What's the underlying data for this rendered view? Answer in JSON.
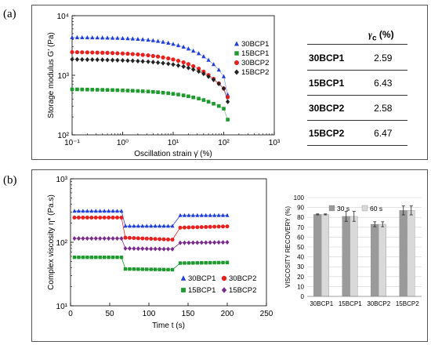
{
  "panel_a_label": "(a)",
  "panel_b_label": "(b)",
  "table": {
    "header_symbol": "γ",
    "header_sub": "c",
    "header_unit": " (%)",
    "rows": [
      {
        "name": "30BCP1",
        "value": "2.59"
      },
      {
        "name": "15BCP1",
        "value": "6.43"
      },
      {
        "name": "30BCP2",
        "value": "2.58"
      },
      {
        "name": "15BCP2",
        "value": "6.47"
      }
    ]
  },
  "chart_data": [
    {
      "type": "scatter",
      "id": "storage-modulus",
      "xscale": "log",
      "yscale": "log",
      "xlim": [
        0.1,
        1000
      ],
      "ylim": [
        100,
        10000
      ],
      "xlabel": "Oscillation strain γ̇  (%)",
      "ylabel": "Storage modulus G′ (Pa)",
      "xticks": [
        "10⁻¹",
        "10⁰",
        "10¹",
        "10²",
        "10³"
      ],
      "yticks": [
        "10²",
        "10³",
        "10⁴"
      ],
      "x": [
        0.1,
        0.126,
        0.158,
        0.2,
        0.251,
        0.316,
        0.398,
        0.5,
        0.63,
        0.79,
        1,
        1.26,
        1.58,
        2,
        2.5,
        3.2,
        4,
        5,
        6.3,
        8,
        10,
        12.6,
        16,
        20,
        25,
        32,
        40,
        50,
        63,
        80,
        100,
        120
      ],
      "series": [
        {
          "name": "30BCP1",
          "color": "#1f3fd8",
          "marker": "triangle",
          "values": [
            4300,
            4300,
            4290,
            4280,
            4270,
            4260,
            4250,
            4230,
            4210,
            4190,
            4160,
            4130,
            4090,
            4040,
            3980,
            3910,
            3830,
            3730,
            3610,
            3480,
            3330,
            3160,
            2980,
            2780,
            2560,
            2320,
            2060,
            1800,
            1520,
            1230,
            950,
            470
          ]
        },
        {
          "name": "15BCP1",
          "color": "#1e9a2e",
          "marker": "square",
          "values": [
            580,
            580,
            578,
            576,
            574,
            572,
            570,
            568,
            565,
            562,
            558,
            554,
            550,
            545,
            540,
            534,
            527,
            519,
            510,
            500,
            488,
            475,
            460,
            444,
            426,
            406,
            384,
            360,
            333,
            305,
            275,
            180
          ]
        },
        {
          "name": "30BCP2",
          "color": "#e8201e",
          "marker": "circle",
          "values": [
            2450,
            2440,
            2430,
            2420,
            2410,
            2400,
            2390,
            2380,
            2360,
            2340,
            2320,
            2300,
            2270,
            2240,
            2200,
            2160,
            2110,
            2060,
            1990,
            1920,
            1840,
            1750,
            1650,
            1540,
            1420,
            1290,
            1150,
            1010,
            870,
            730,
            600,
            430
          ]
        },
        {
          "name": "15BCP2",
          "color": "#222222",
          "marker": "diamond",
          "values": [
            1850,
            1845,
            1840,
            1835,
            1830,
            1825,
            1818,
            1810,
            1800,
            1790,
            1778,
            1765,
            1750,
            1732,
            1712,
            1690,
            1664,
            1634,
            1600,
            1560,
            1515,
            1460,
            1400,
            1330,
            1250,
            1160,
            1060,
            950,
            840,
            720,
            600,
            360
          ]
        }
      ],
      "legend": "right"
    },
    {
      "type": "scatter",
      "id": "complex-viscosity",
      "yscale": "log",
      "xlim": [
        0,
        250
      ],
      "ylim": [
        10,
        1000
      ],
      "xlabel": "Time  t  (s)",
      "ylabel": "Complex viscosity  η* (Pa.s)",
      "xticks": [
        "0",
        "50",
        "100",
        "150",
        "200",
        "250"
      ],
      "yticks": [
        "10¹",
        "10²",
        "10³"
      ],
      "series": [
        {
          "name": "30BCP1",
          "color": "#1f3fd8",
          "marker": "triangle",
          "segments": [
            {
              "x": [
                5,
                65
              ],
              "y": [
                310,
                310
              ]
            },
            {
              "x": [
                70,
                130
              ],
              "y": [
                180,
                180
              ]
            },
            {
              "x": [
                140,
                200
              ],
              "y": [
                265,
                265
              ]
            }
          ]
        },
        {
          "name": "30BCP2",
          "color": "#e8201e",
          "marker": "circle",
          "segments": [
            {
              "x": [
                5,
                65
              ],
              "y": [
                245,
                245
              ]
            },
            {
              "x": [
                70,
                130
              ],
              "y": [
                118,
                110
              ]
            },
            {
              "x": [
                140,
                200
              ],
              "y": [
                170,
                178
              ]
            }
          ]
        },
        {
          "name": "15BCP1",
          "color": "#1e9a2e",
          "marker": "square",
          "segments": [
            {
              "x": [
                5,
                65
              ],
              "y": [
                58,
                58
              ]
            },
            {
              "x": [
                70,
                130
              ],
              "y": [
                38,
                37
              ]
            },
            {
              "x": [
                140,
                200
              ],
              "y": [
                47,
                48
              ]
            }
          ]
        },
        {
          "name": "15BCP2",
          "color": "#7b2a8e",
          "marker": "diamond",
          "segments": [
            {
              "x": [
                5,
                65
              ],
              "y": [
                115,
                115
              ]
            },
            {
              "x": [
                70,
                130
              ],
              "y": [
                80,
                78
              ]
            },
            {
              "x": [
                140,
                200
              ],
              "y": [
                98,
                100
              ]
            }
          ]
        }
      ],
      "legend": "bottom"
    },
    {
      "type": "bar",
      "id": "viscosity-recovery",
      "categories": [
        "30BCP1",
        "15BCP1",
        "30BCP2",
        "15BCP2"
      ],
      "series": [
        {
          "name": "30 s",
          "color": "#9a9a9a",
          "values": [
            83,
            81,
            73,
            87
          ],
          "errors": [
            0.5,
            5,
            2.5,
            4.5
          ]
        },
        {
          "name": "60 s",
          "color": "#d9d9d9",
          "values": [
            83,
            81,
            73,
            87
          ],
          "errors": [
            0.5,
            5,
            2.5,
            4.5
          ]
        }
      ],
      "ylabel": "VISCOSITY RECOVERY (%)",
      "ylim": [
        0,
        100
      ],
      "yticks": [
        "0",
        "10",
        "20",
        "30",
        "40",
        "50",
        "60",
        "70",
        "80",
        "90",
        "100"
      ],
      "grid": true,
      "legend": "top"
    }
  ]
}
